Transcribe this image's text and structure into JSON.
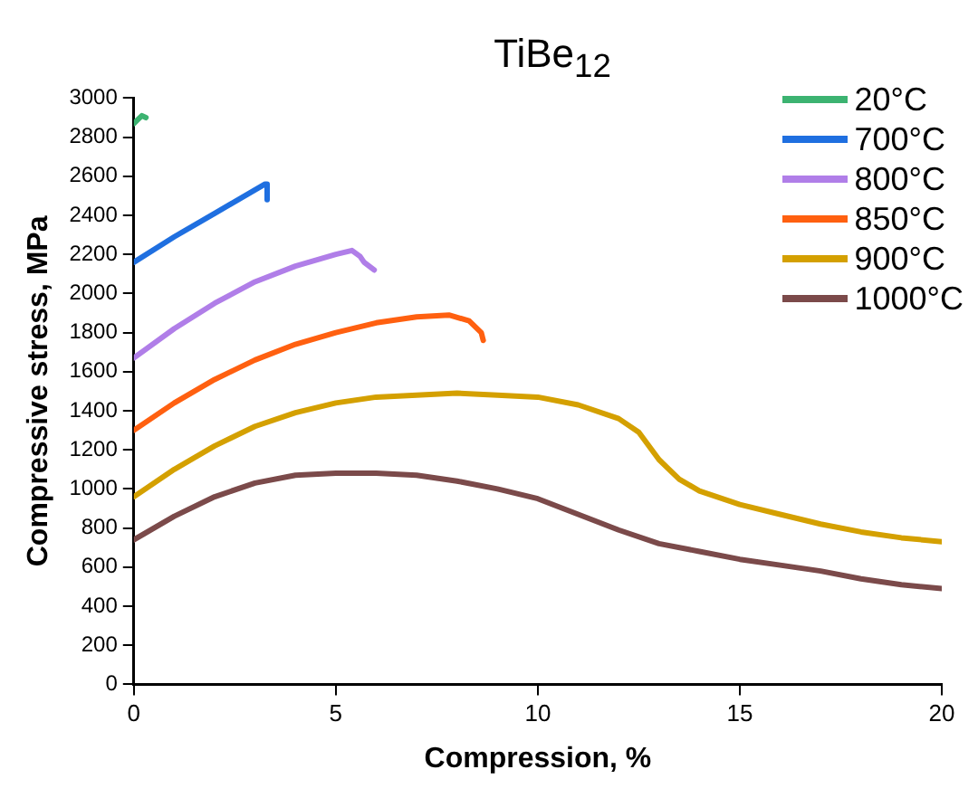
{
  "chart_data": {
    "type": "line",
    "title": "TiBe$_{12}$",
    "xlabel": "Compression, %",
    "ylabel": "Compressive stress, MPa",
    "xlim": [
      0,
      20
    ],
    "xticks": [
      0,
      5,
      10,
      15,
      20
    ],
    "ylim": [
      0,
      3000
    ],
    "yticks": [
      0,
      200,
      400,
      600,
      800,
      1000,
      1200,
      1400,
      1600,
      1800,
      2000,
      2200,
      2400,
      2600,
      2800,
      3000
    ],
    "grid": false,
    "legend": "top right",
    "marker": "none",
    "line_style": "solid",
    "series": [
      {
        "name": "20°C",
        "color": "#3cb371",
        "x": [
          0,
          0.1,
          0.2,
          0.3
        ],
        "values": [
          2870,
          2890,
          2910,
          2900
        ]
      },
      {
        "name": "700°C",
        "color": "#1f6fe0",
        "x": [
          0,
          1,
          2,
          3,
          3.25,
          3.3,
          3.3
        ],
        "values": [
          2160,
          2290,
          2410,
          2530,
          2560,
          2560,
          2480
        ]
      },
      {
        "name": "800°C",
        "color": "#b07ee8",
        "x": [
          0,
          1,
          2,
          3,
          4,
          5,
          5.4,
          5.6,
          5.7,
          5.95
        ],
        "values": [
          1670,
          1820,
          1950,
          2060,
          2140,
          2200,
          2220,
          2190,
          2160,
          2120
        ]
      },
      {
        "name": "850°C",
        "color": "#ff6010",
        "x": [
          0,
          1,
          2,
          3,
          4,
          5,
          6,
          7,
          7.8,
          8.3,
          8.6,
          8.65
        ],
        "values": [
          1300,
          1440,
          1560,
          1660,
          1740,
          1800,
          1850,
          1880,
          1890,
          1860,
          1800,
          1760
        ]
      },
      {
        "name": "900°C",
        "color": "#d4a000",
        "x": [
          0,
          1,
          2,
          3,
          4,
          5,
          6,
          7,
          8,
          9,
          10,
          11,
          12,
          12.5,
          13,
          13.5,
          14,
          15,
          16,
          17,
          18,
          19,
          20
        ],
        "values": [
          960,
          1100,
          1220,
          1320,
          1390,
          1440,
          1470,
          1480,
          1490,
          1480,
          1470,
          1430,
          1360,
          1290,
          1150,
          1050,
          990,
          920,
          870,
          820,
          780,
          750,
          730
        ]
      },
      {
        "name": "1000°C",
        "color": "#7b4a4a",
        "x": [
          0,
          1,
          2,
          3,
          4,
          5,
          6,
          7,
          8,
          9,
          10,
          11,
          12,
          13,
          14,
          15,
          16,
          17,
          18,
          19,
          20
        ],
        "values": [
          740,
          860,
          960,
          1030,
          1070,
          1080,
          1080,
          1070,
          1040,
          1000,
          950,
          870,
          790,
          720,
          680,
          640,
          610,
          580,
          540,
          510,
          490
        ]
      }
    ]
  }
}
